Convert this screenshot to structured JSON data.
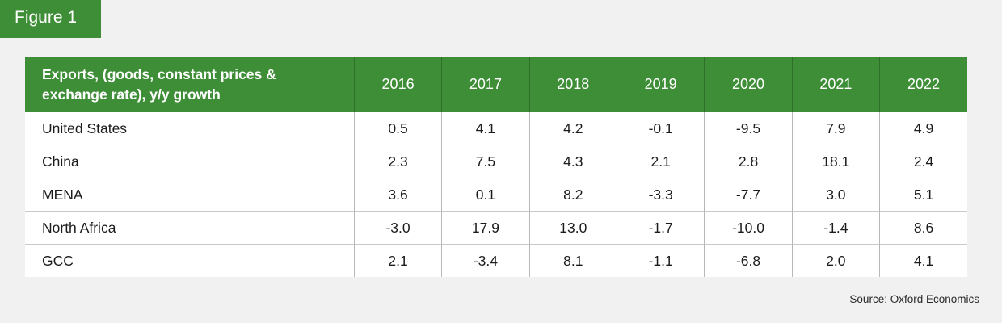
{
  "figure_label": "Figure 1",
  "source": "Source: Oxford Economics",
  "chart_data": {
    "type": "table",
    "header_label": "Exports, (goods, constant prices & exchange rate), y/y growth",
    "columns": [
      "2016",
      "2017",
      "2018",
      "2019",
      "2020",
      "2021",
      "2022"
    ],
    "rows": [
      {
        "name": "United States",
        "values": [
          "0.5",
          "4.1",
          "4.2",
          "-0.1",
          "-9.5",
          "7.9",
          "4.9"
        ]
      },
      {
        "name": "China",
        "values": [
          "2.3",
          "7.5",
          "4.3",
          "2.1",
          "2.8",
          "18.1",
          "2.4"
        ]
      },
      {
        "name": "MENA",
        "values": [
          "3.6",
          "0.1",
          "8.2",
          "-3.3",
          "-7.7",
          "3.0",
          "5.1"
        ]
      },
      {
        "name": "North Africa",
        "values": [
          "-3.0",
          "17.9",
          "13.0",
          "-1.7",
          "-10.0",
          "-1.4",
          "8.6"
        ]
      },
      {
        "name": "GCC",
        "values": [
          "2.1",
          "-3.4",
          "8.1",
          "-1.1",
          "-6.8",
          "2.0",
          "4.1"
        ]
      }
    ]
  },
  "colors": {
    "accent": "#3e8d37",
    "background": "#f1f1f2",
    "cell": "#ffffff"
  }
}
